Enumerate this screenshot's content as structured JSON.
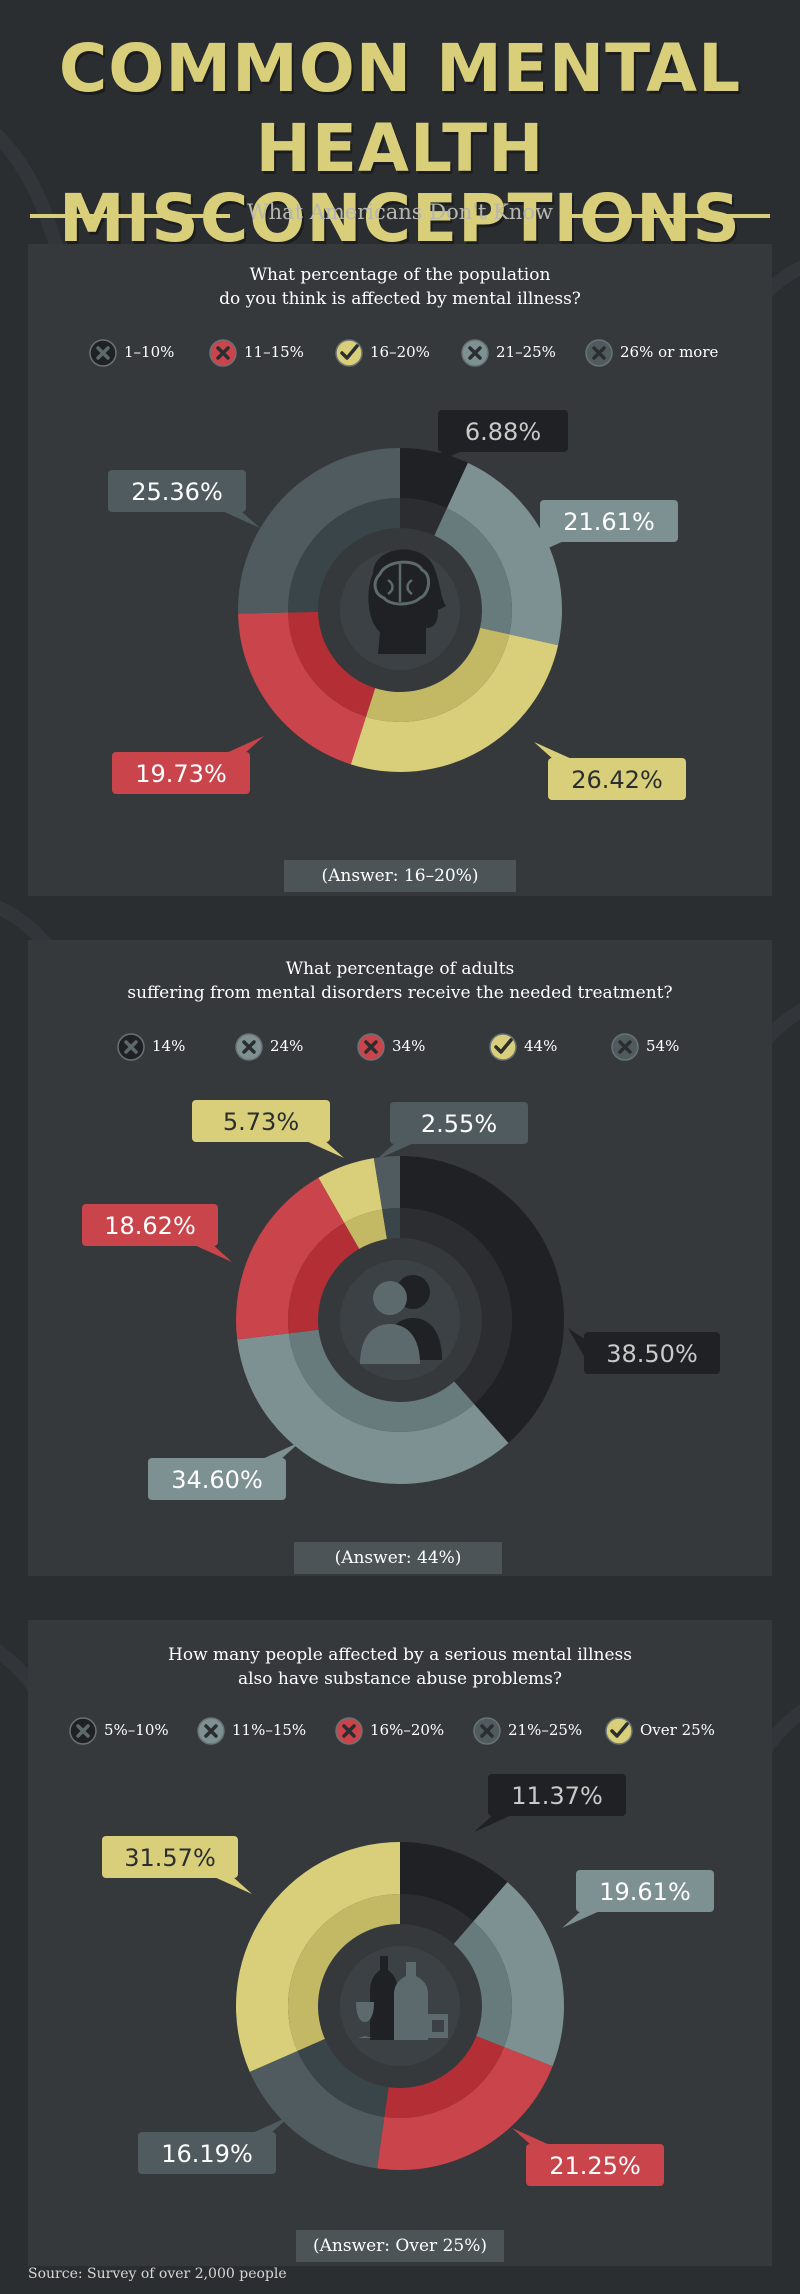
{
  "title": {
    "line1": "COMMON MENTAL",
    "line2": "HEALTH MISCONCEPTIONS",
    "subtitle": "What Americans Don't Know"
  },
  "colors": {
    "background": "#2b2e31",
    "panel": "#35393c",
    "accent_yellow": "#d9cf7a",
    "red": "#c9454b",
    "teal": "#7d9092",
    "slate": "#4f5b5e",
    "dark": "#1f2124",
    "answer_box": "#4c5458"
  },
  "icons": {
    "correct": "check-circle-icon",
    "incorrect": "x-circle-icon",
    "chart1_center": "brain-head-icon",
    "chart2_center": "two-people-icon",
    "chart3_center": "bottles-glasses-icon"
  },
  "panels": [
    {
      "question_line1": "What percentage of the population",
      "question_line2": "do you think is affected by mental illness?",
      "legend": [
        {
          "label": "1–10%",
          "color": "#1f2124",
          "correct": false
        },
        {
          "label": "11–15%",
          "color": "#c9454b",
          "correct": false
        },
        {
          "label": "16–20%",
          "color": "#d9cf7a",
          "correct": true
        },
        {
          "label": "21–25%",
          "color": "#7d9092",
          "correct": false
        },
        {
          "label": "26% or more",
          "color": "#4f5b5e",
          "correct": false
        }
      ],
      "answer": "(Answer: 16–20%)"
    },
    {
      "question_line1": "What percentage of adults",
      "question_line2": "suffering from mental disorders receive the needed treatment?",
      "legend": [
        {
          "label": "14%",
          "color": "#1f2124",
          "correct": false
        },
        {
          "label": "24%",
          "color": "#7d9092",
          "correct": false
        },
        {
          "label": "34%",
          "color": "#c9454b",
          "correct": false
        },
        {
          "label": "44%",
          "color": "#d9cf7a",
          "correct": true
        },
        {
          "label": "54%",
          "color": "#4f5b5e",
          "correct": false
        }
      ],
      "answer": "(Answer: 44%)"
    },
    {
      "question_line1": "How many people affected by a serious mental illness",
      "question_line2": "also have substance abuse problems?",
      "legend": [
        {
          "label": "5%–10%",
          "color": "#1f2124",
          "correct": false
        },
        {
          "label": "11%–15%",
          "color": "#7d9092",
          "correct": false
        },
        {
          "label": "16%–20%",
          "color": "#c9454b",
          "correct": false
        },
        {
          "label": "21%–25%",
          "color": "#4f5b5e",
          "correct": false
        },
        {
          "label": "Over 25%",
          "color": "#d9cf7a",
          "correct": true
        }
      ],
      "answer": "(Answer: Over 25%)"
    }
  ],
  "chart_data": [
    {
      "type": "pie",
      "title": "What percentage of the population do you think is affected by mental illness?",
      "categories": [
        "1–10%",
        "21–25%",
        "16–20%",
        "11–15%",
        "26% or more"
      ],
      "values": [
        6.88,
        21.61,
        26.42,
        19.73,
        25.36
      ],
      "labels": [
        "6.88%",
        "21.61%",
        "26.42%",
        "19.73%",
        "25.36%"
      ],
      "colors": [
        "#1f2124",
        "#7d9092",
        "#d9cf7a",
        "#c9454b",
        "#4f5b5e"
      ]
    },
    {
      "type": "pie",
      "title": "What percentage of adults suffering from mental disorders receive the needed treatment?",
      "categories": [
        "14%",
        "24%",
        "34%",
        "44%",
        "54%"
      ],
      "values": [
        38.5,
        34.6,
        18.62,
        5.73,
        2.55
      ],
      "labels": [
        "38.50%",
        "34.60%",
        "18.62%",
        "5.73%",
        "2.55%"
      ],
      "colors": [
        "#1f2124",
        "#7d9092",
        "#c9454b",
        "#d9cf7a",
        "#4f5b5e"
      ]
    },
    {
      "type": "pie",
      "title": "How many people affected by a serious mental illness also have substance abuse problems?",
      "categories": [
        "5%–10%",
        "11%–15%",
        "16%–20%",
        "21%–25%",
        "Over 25%"
      ],
      "values": [
        11.37,
        19.61,
        21.25,
        16.19,
        31.57
      ],
      "labels": [
        "11.37%",
        "19.61%",
        "21.25%",
        "16.19%",
        "31.57%"
      ],
      "colors": [
        "#1f2124",
        "#7d9092",
        "#c9454b",
        "#4f5b5e",
        "#d9cf7a"
      ]
    }
  ],
  "source": "Source: Survey of over 2,000 people"
}
